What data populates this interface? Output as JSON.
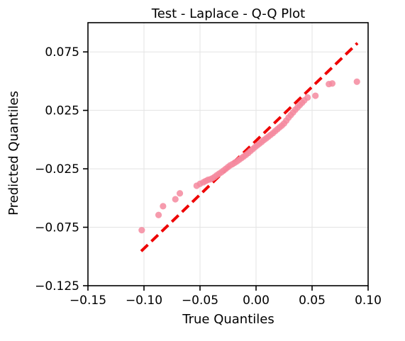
{
  "chart_data": {
    "type": "scatter",
    "title": "Test - Laplace - Q-Q Plot",
    "xlabel": "True Quantiles",
    "ylabel": "Predicted Quantiles",
    "xlim": [
      -0.15,
      0.1
    ],
    "ylim": [
      -0.125,
      0.1
    ],
    "xticks": [
      -0.15,
      -0.1,
      -0.05,
      0.0,
      0.05,
      0.1
    ],
    "xtick_labels": [
      "−0.15",
      "−0.10",
      "−0.05",
      "0.00",
      "0.05",
      "0.10"
    ],
    "yticks": [
      -0.125,
      -0.075,
      -0.025,
      0.025,
      0.075
    ],
    "ytick_labels": [
      "−0.125",
      "−0.075",
      "−0.025",
      "0.025",
      "0.075"
    ],
    "grid": true,
    "colors": {
      "points": "#f4899f",
      "reference_line": "#ee0000"
    },
    "reference_line": {
      "x": [
        -0.1025,
        0.0905
      ],
      "y": [
        -0.0955,
        0.0825
      ]
    },
    "series": [
      {
        "points": [
          [
            -0.102,
            -0.0775
          ],
          [
            -0.087,
            -0.0645
          ],
          [
            -0.083,
            -0.057
          ],
          [
            -0.072,
            -0.051
          ],
          [
            -0.068,
            -0.046
          ],
          [
            -0.053,
            -0.0395
          ],
          [
            -0.05,
            -0.0378
          ],
          [
            -0.047,
            -0.0365
          ],
          [
            -0.045,
            -0.0355
          ],
          [
            -0.043,
            -0.0345
          ],
          [
            -0.041,
            -0.034
          ],
          [
            -0.039,
            -0.0332
          ],
          [
            -0.037,
            -0.032
          ],
          [
            -0.035,
            -0.0305
          ],
          [
            -0.033,
            -0.0292
          ],
          [
            -0.031,
            -0.028
          ],
          [
            -0.029,
            -0.0265
          ],
          [
            -0.027,
            -0.025
          ],
          [
            -0.025,
            -0.0235
          ],
          [
            -0.023,
            -0.022
          ],
          [
            -0.021,
            -0.021
          ],
          [
            -0.019,
            -0.0198
          ],
          [
            -0.017,
            -0.0186
          ],
          [
            -0.015,
            -0.0172
          ],
          [
            -0.013,
            -0.0158
          ],
          [
            -0.011,
            -0.0145
          ],
          [
            -0.009,
            -0.013
          ],
          [
            -0.007,
            -0.0115
          ],
          [
            -0.005,
            -0.0098
          ],
          [
            -0.003,
            -0.0082
          ],
          [
            -0.001,
            -0.0065
          ],
          [
            0.001,
            -0.005
          ],
          [
            0.003,
            -0.0035
          ],
          [
            0.005,
            -0.002
          ],
          [
            0.007,
            -0.0004
          ],
          [
            0.009,
            0.001
          ],
          [
            0.011,
            0.0025
          ],
          [
            0.013,
            0.004
          ],
          [
            0.015,
            0.0055
          ],
          [
            0.017,
            0.0072
          ],
          [
            0.019,
            0.0088
          ],
          [
            0.021,
            0.0105
          ],
          [
            0.023,
            0.012
          ],
          [
            0.025,
            0.0138
          ],
          [
            0.027,
            0.0162
          ],
          [
            0.029,
            0.0188
          ],
          [
            0.031,
            0.021
          ],
          [
            0.033,
            0.0232
          ],
          [
            0.035,
            0.0255
          ],
          [
            0.037,
            0.0275
          ],
          [
            0.039,
            0.0295
          ],
          [
            0.041,
            0.0315
          ],
          [
            0.043,
            0.0335
          ],
          [
            0.046,
            0.036
          ],
          [
            0.053,
            0.0375
          ],
          [
            0.065,
            0.0475
          ],
          [
            0.068,
            0.048
          ],
          [
            0.09,
            0.0495
          ]
        ]
      }
    ]
  }
}
